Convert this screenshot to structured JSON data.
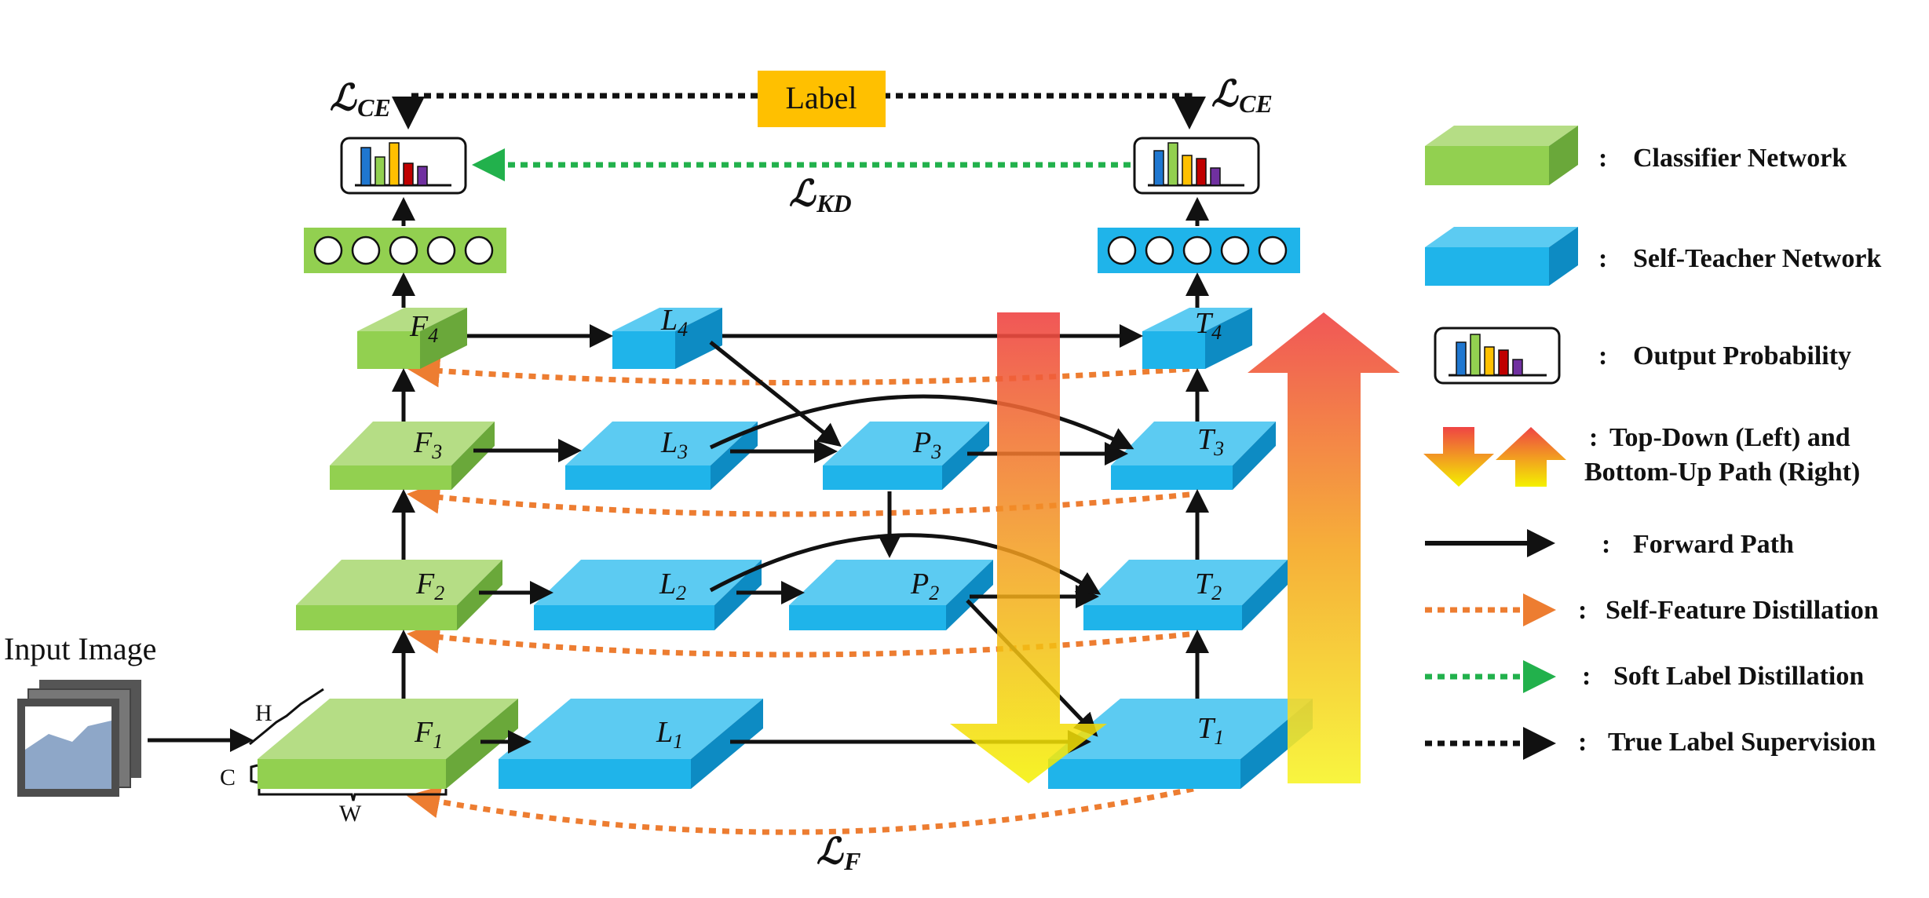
{
  "label_box": {
    "text": "Label"
  },
  "input": {
    "title": "Input Image",
    "dim_h": "H",
    "dim_c": "C",
    "dim_w": "W"
  },
  "loss_labels": {
    "ce_left": "CE",
    "ce_right": "CE",
    "kd": "KD",
    "f": "F",
    "script_l": "ℒ"
  },
  "classifier_nodes": [
    {
      "base": "F",
      "sub": "4"
    },
    {
      "base": "F",
      "sub": "3"
    },
    {
      "base": "F",
      "sub": "2"
    },
    {
      "base": "F",
      "sub": "1"
    }
  ],
  "lateral_nodes": [
    {
      "base": "L",
      "sub": "4"
    },
    {
      "base": "L",
      "sub": "3"
    },
    {
      "base": "L",
      "sub": "2"
    },
    {
      "base": "L",
      "sub": "1"
    }
  ],
  "topdown_nodes": [
    {
      "base": "P",
      "sub": "3"
    },
    {
      "base": "P",
      "sub": "2"
    }
  ],
  "teacher_nodes": [
    {
      "base": "T",
      "sub": "4"
    },
    {
      "base": "T",
      "sub": "3"
    },
    {
      "base": "T",
      "sub": "2"
    },
    {
      "base": "T",
      "sub": "1"
    }
  ],
  "legend": [
    {
      "symbol": "green-block",
      "text": "Classifier Network"
    },
    {
      "symbol": "blue-block",
      "text": "Self-Teacher Network"
    },
    {
      "symbol": "histogram",
      "text": "Output Probability"
    },
    {
      "symbol": "gradient-arrows",
      "text": "Top-Down (Left) and",
      "text2": "Bottom-Up Path (Right)"
    },
    {
      "symbol": "black-arrow",
      "text": "Forward Path"
    },
    {
      "symbol": "orange-dotted-arrow",
      "text": "Self-Feature Distillation"
    },
    {
      "symbol": "green-dotted-arrow",
      "text": "Soft Label Distillation"
    },
    {
      "symbol": "black-dotted-arrow",
      "text": "True Label Supervision"
    }
  ],
  "legend_separator": ":",
  "colors": {
    "classifier_green": "#92d050",
    "teacher_blue": "#1fb4ea",
    "label_orange": "#ffc000",
    "forward": "#111111",
    "feature_distill": "#ed7d31",
    "soft_label": "#22b14c",
    "true_label": "#111111",
    "bars": [
      "#1f77d0",
      "#92d050",
      "#ffc000",
      "#c00000",
      "#7030a0"
    ]
  }
}
